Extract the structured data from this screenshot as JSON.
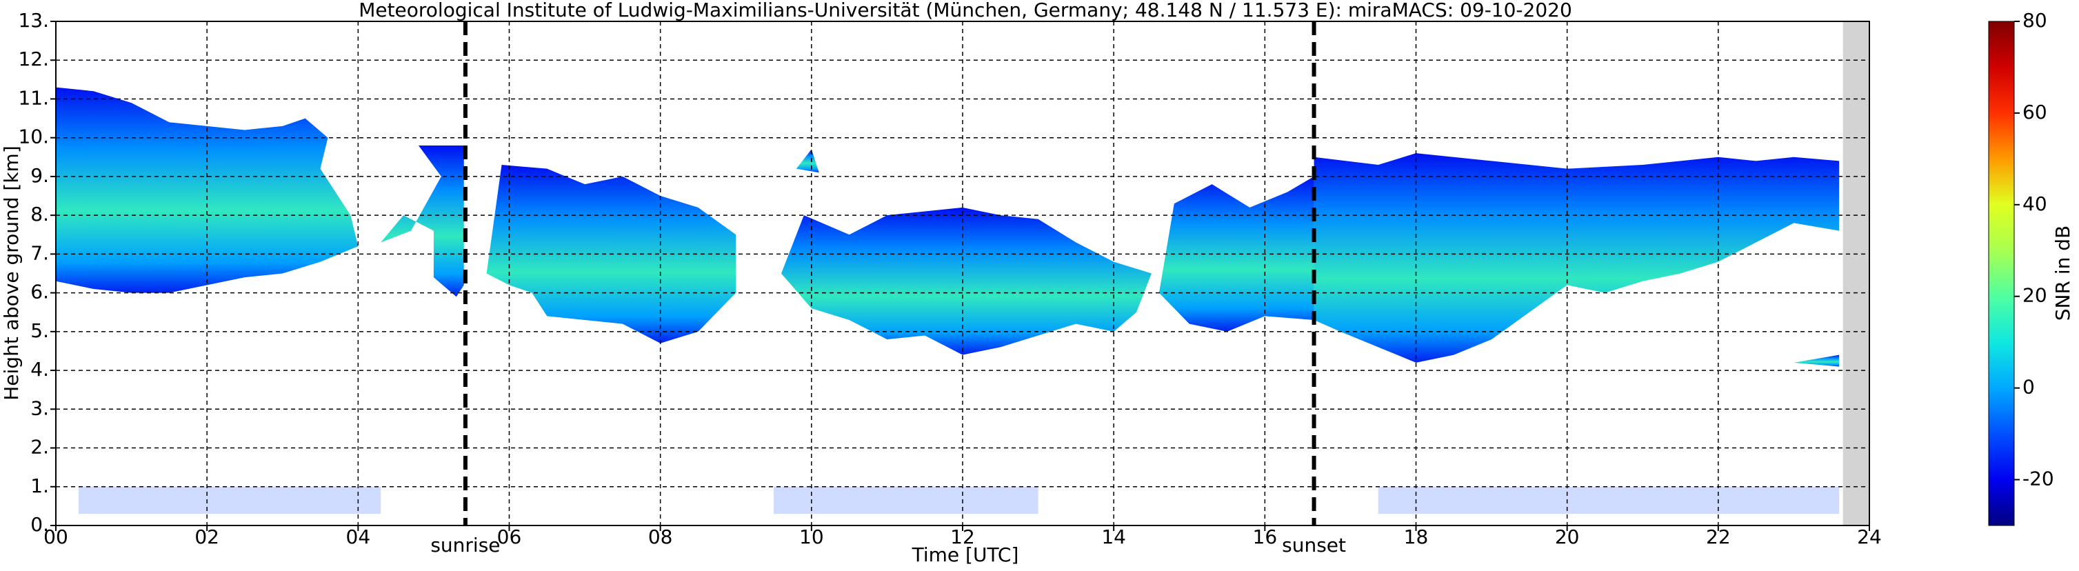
{
  "chart_data": {
    "type": "heatmap",
    "title": "Meteorological Institute of Ludwig-Maximilians-Universität (München, Germany; 48.148 N / 11.573 E):    miraMACS: 09-10-2020",
    "x_label": "Time [UTC]",
    "y_label": "Height above ground [km]",
    "xlim": [
      0,
      24
    ],
    "ylim": [
      0,
      13
    ],
    "xticks": [
      {
        "value": 0,
        "label": "00"
      },
      {
        "value": 2,
        "label": "02"
      },
      {
        "value": 4,
        "label": "04"
      },
      {
        "value": 6,
        "label": "06"
      },
      {
        "value": 8,
        "label": "08"
      },
      {
        "value": 10,
        "label": "10"
      },
      {
        "value": 12,
        "label": "12"
      },
      {
        "value": 14,
        "label": "14"
      },
      {
        "value": 16,
        "label": "16"
      },
      {
        "value": 18,
        "label": "18"
      },
      {
        "value": 20,
        "label": "20"
      },
      {
        "value": 22,
        "label": "22"
      },
      {
        "value": 24,
        "label": "24"
      }
    ],
    "yticks": [
      {
        "value": 0,
        "label": "0."
      },
      {
        "value": 1,
        "label": "1."
      },
      {
        "value": 2,
        "label": "2."
      },
      {
        "value": 3,
        "label": "3."
      },
      {
        "value": 4,
        "label": "4."
      },
      {
        "value": 5,
        "label": "5."
      },
      {
        "value": 6,
        "label": "6."
      },
      {
        "value": 7,
        "label": "7."
      },
      {
        "value": 8,
        "label": "8."
      },
      {
        "value": 9,
        "label": "9."
      },
      {
        "value": 10,
        "label": "10."
      },
      {
        "value": 11,
        "label": "11."
      },
      {
        "value": 12,
        "label": "12."
      },
      {
        "value": 13,
        "label": "13."
      }
    ],
    "grid": true,
    "events": [
      {
        "label": "sunrise",
        "x": 5.42
      },
      {
        "label": "sunset",
        "x": 16.65
      }
    ],
    "colorbar": {
      "label": "SNR in dB",
      "lim": [
        -30,
        80
      ],
      "ticks": [
        -20,
        0,
        20,
        40,
        60,
        80
      ],
      "colors": [
        "#00007f",
        "#0000f0",
        "#0050ff",
        "#00a8ff",
        "#10e8e0",
        "#50ffa0",
        "#a8ff50",
        "#e0ff20",
        "#ff9a00",
        "#ff3000",
        "#d00000",
        "#800000"
      ]
    }
  }
}
